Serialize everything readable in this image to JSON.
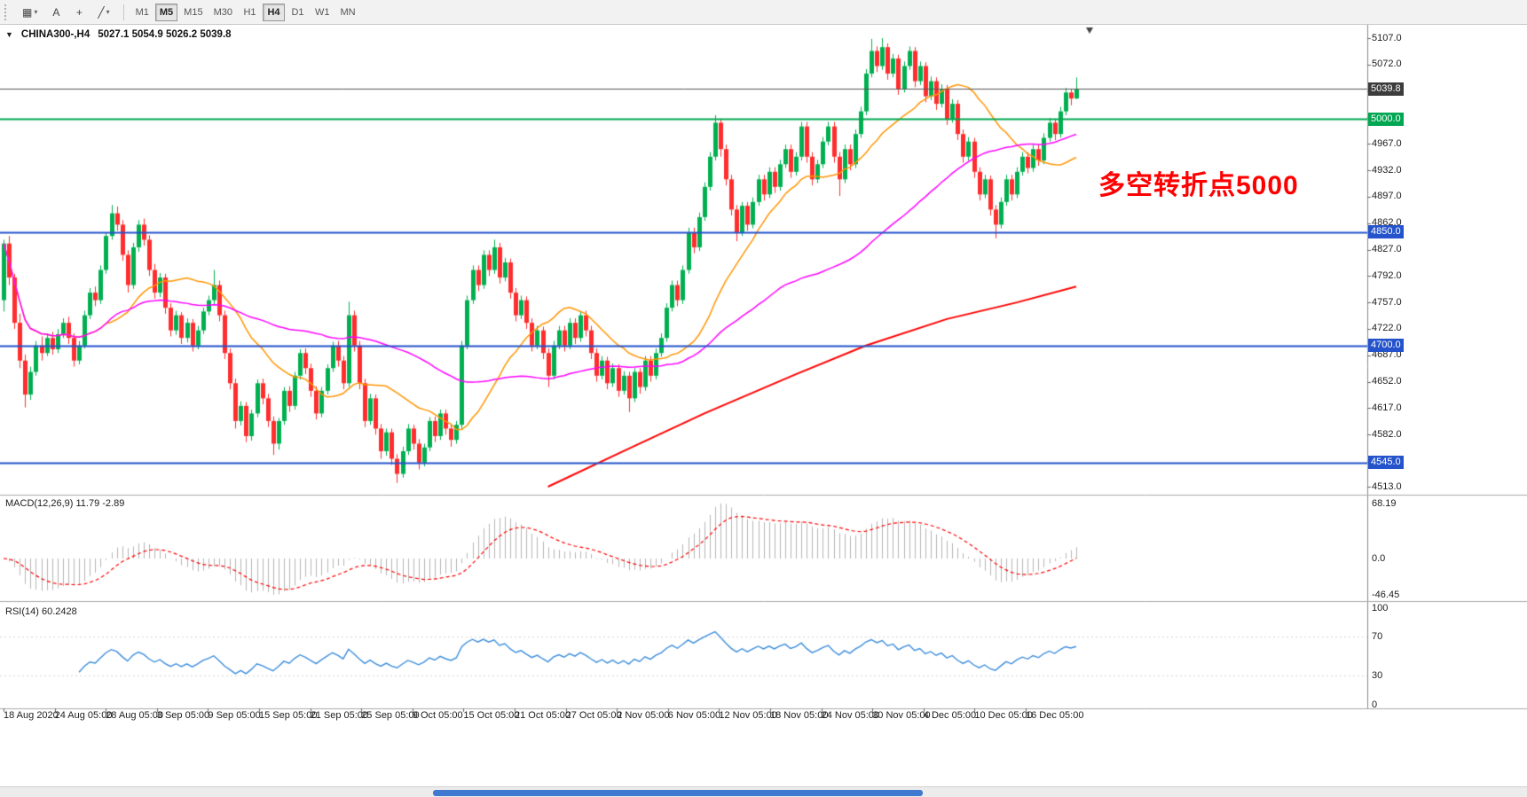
{
  "toolbar": {
    "tools": [
      {
        "name": "chart-type",
        "glyph": "▦",
        "caret": true
      },
      {
        "name": "text-label-tool",
        "glyph": "A",
        "caret": false
      },
      {
        "name": "crosshair-tool",
        "glyph": "+",
        "caret": false
      },
      {
        "name": "drawing-tools",
        "glyph": "╱",
        "caret": true
      }
    ],
    "timeframes": [
      {
        "label": "M1",
        "active": false
      },
      {
        "label": "M5",
        "active": true
      },
      {
        "label": "M15",
        "active": false
      },
      {
        "label": "M30",
        "active": false
      },
      {
        "label": "H1",
        "active": false
      },
      {
        "label": "H4",
        "active": true
      },
      {
        "label": "D1",
        "active": false
      },
      {
        "label": "W1",
        "active": false
      },
      {
        "label": "MN",
        "active": false
      }
    ]
  },
  "chart": {
    "symbol_period": "CHINA300-,H4",
    "ohlc_text": "5027.1 5054.9 5026.2 5039.8",
    "current_price": 5039.8,
    "current_price_color": "#3c3c3c",
    "annotation": {
      "text": "多空转折点5000",
      "color": "#ff0000"
    },
    "hlines": [
      {
        "price": 5000.0,
        "color": "#00a651"
      },
      {
        "price": 4850.0,
        "color": "#2453cc"
      },
      {
        "price": 4700.0,
        "color": "#2453cc"
      },
      {
        "price": 4545.0,
        "color": "#2453cc"
      }
    ],
    "price_ticks": [
      5107.0,
      5072.0,
      5037.0,
      5002.0,
      4967.0,
      4932.0,
      4897.0,
      4862.0,
      4827.0,
      4792.0,
      4757.0,
      4722.0,
      4687.0,
      4652.0,
      4617.0,
      4582.0,
      4547.0,
      4513.0
    ]
  },
  "macd": {
    "label": "MACD(12,26,9) 11.79 -2.89",
    "axis_ticks": [
      68.19,
      0.0,
      -46.45
    ]
  },
  "rsi": {
    "label": "RSI(14) 60.2428",
    "axis_ticks": [
      100,
      70,
      30,
      0
    ]
  },
  "time_axis": [
    "18 Aug 2020",
    "24 Aug 05:00",
    "28 Aug 05:00",
    "3 Sep 05:00",
    "9 Sep 05:00",
    "15 Sep 05:00",
    "21 Sep 05:00",
    "25 Sep 05:00",
    "9 Oct 05:00",
    "15 Oct 05:00",
    "21 Oct 05:00",
    "27 Oct 05:00",
    "2 Nov 05:00",
    "6 Nov 05:00",
    "12 Nov 05:00",
    "18 Nov 05:00",
    "24 Nov 05:00",
    "30 Nov 05:00",
    "4 Dec 05:00",
    "10 Dec 05:00",
    "16 Dec 05:00"
  ],
  "scrollbar": {
    "thumb_color": "#3f7ad0"
  },
  "chart_data": {
    "type": "candlestick",
    "title": "CHINA300- H4",
    "ylim": [
      4513,
      5107
    ],
    "up_color": "#00b050",
    "down_color": "#ff2d2d",
    "ohlc": [
      [
        4760,
        4840,
        4745,
        4835
      ],
      [
        4835,
        4845,
        4780,
        4790
      ],
      [
        4790,
        4795,
        4722,
        4730
      ],
      [
        4730,
        4742,
        4670,
        4680
      ],
      [
        4680,
        4688,
        4618,
        4635
      ],
      [
        4635,
        4672,
        4628,
        4665
      ],
      [
        4665,
        4706,
        4660,
        4700
      ],
      [
        4700,
        4712,
        4680,
        4690
      ],
      [
        4690,
        4716,
        4686,
        4710
      ],
      [
        4710,
        4718,
        4688,
        4695
      ],
      [
        4695,
        4722,
        4690,
        4715
      ],
      [
        4715,
        4736,
        4710,
        4730
      ],
      [
        4730,
        4738,
        4702,
        4710
      ],
      [
        4710,
        4716,
        4672,
        4680
      ],
      [
        4680,
        4706,
        4675,
        4700
      ],
      [
        4700,
        4746,
        4696,
        4740
      ],
      [
        4740,
        4776,
        4735,
        4770
      ],
      [
        4770,
        4778,
        4752,
        4760
      ],
      [
        4760,
        4806,
        4755,
        4800
      ],
      [
        4800,
        4850,
        4795,
        4845
      ],
      [
        4845,
        4886,
        4840,
        4875
      ],
      [
        4875,
        4884,
        4852,
        4860
      ],
      [
        4860,
        4866,
        4812,
        4820
      ],
      [
        4820,
        4826,
        4770,
        4780
      ],
      [
        4780,
        4836,
        4775,
        4830
      ],
      [
        4830,
        4866,
        4824,
        4860
      ],
      [
        4860,
        4868,
        4832,
        4840
      ],
      [
        4840,
        4846,
        4792,
        4800
      ],
      [
        4800,
        4808,
        4762,
        4770
      ],
      [
        4770,
        4796,
        4764,
        4790
      ],
      [
        4790,
        4795,
        4742,
        4750
      ],
      [
        4750,
        4756,
        4712,
        4720
      ],
      [
        4720,
        4746,
        4714,
        4740
      ],
      [
        4740,
        4744,
        4702,
        4710
      ],
      [
        4710,
        4736,
        4704,
        4730
      ],
      [
        4730,
        4735,
        4692,
        4700
      ],
      [
        4700,
        4726,
        4695,
        4720
      ],
      [
        4720,
        4750,
        4715,
        4745
      ],
      [
        4745,
        4766,
        4740,
        4760
      ],
      [
        4760,
        4800,
        4754,
        4780
      ],
      [
        4780,
        4786,
        4732,
        4740
      ],
      [
        4740,
        4746,
        4682,
        4690
      ],
      [
        4690,
        4696,
        4642,
        4650
      ],
      [
        4650,
        4656,
        4590,
        4600
      ],
      [
        4600,
        4626,
        4594,
        4620
      ],
      [
        4620,
        4625,
        4572,
        4580
      ],
      [
        4580,
        4615,
        4574,
        4610
      ],
      [
        4610,
        4655,
        4605,
        4650
      ],
      [
        4650,
        4656,
        4622,
        4630
      ],
      [
        4630,
        4636,
        4592,
        4600
      ],
      [
        4600,
        4606,
        4555,
        4570
      ],
      [
        4570,
        4604,
        4562,
        4600
      ],
      [
        4600,
        4645,
        4595,
        4640
      ],
      [
        4640,
        4646,
        4612,
        4620
      ],
      [
        4620,
        4665,
        4615,
        4660
      ],
      [
        4660,
        4695,
        4655,
        4690
      ],
      [
        4690,
        4696,
        4662,
        4670
      ],
      [
        4670,
        4676,
        4632,
        4640
      ],
      [
        4640,
        4646,
        4602,
        4610
      ],
      [
        4610,
        4645,
        4605,
        4640
      ],
      [
        4640,
        4675,
        4635,
        4670
      ],
      [
        4670,
        4705,
        4665,
        4700
      ],
      [
        4700,
        4706,
        4672,
        4680
      ],
      [
        4680,
        4686,
        4642,
        4650
      ],
      [
        4650,
        4758,
        4645,
        4740
      ],
      [
        4740,
        4746,
        4692,
        4700
      ],
      [
        4700,
        4706,
        4642,
        4650
      ],
      [
        4650,
        4656,
        4592,
        4600
      ],
      [
        4600,
        4636,
        4595,
        4630
      ],
      [
        4630,
        4635,
        4582,
        4590
      ],
      [
        4590,
        4596,
        4550,
        4560
      ],
      [
        4560,
        4590,
        4554,
        4585
      ],
      [
        4585,
        4590,
        4542,
        4550
      ],
      [
        4550,
        4556,
        4518,
        4530
      ],
      [
        4530,
        4566,
        4525,
        4560
      ],
      [
        4560,
        4596,
        4555,
        4590
      ],
      [
        4590,
        4595,
        4562,
        4570
      ],
      [
        4570,
        4576,
        4536,
        4545
      ],
      [
        4545,
        4570,
        4540,
        4565
      ],
      [
        4565,
        4605,
        4560,
        4600
      ],
      [
        4600,
        4606,
        4572,
        4580
      ],
      [
        4580,
        4615,
        4575,
        4610
      ],
      [
        4610,
        4615,
        4582,
        4590
      ],
      [
        4590,
        4596,
        4566,
        4575
      ],
      [
        4575,
        4600,
        4570,
        4595
      ],
      [
        4595,
        4706,
        4590,
        4700
      ],
      [
        4700,
        4766,
        4695,
        4760
      ],
      [
        4760,
        4806,
        4755,
        4800
      ],
      [
        4800,
        4806,
        4772,
        4780
      ],
      [
        4780,
        4826,
        4775,
        4820
      ],
      [
        4820,
        4826,
        4792,
        4800
      ],
      [
        4800,
        4840,
        4795,
        4830
      ],
      [
        4830,
        4836,
        4782,
        4790
      ],
      [
        4790,
        4816,
        4785,
        4810
      ],
      [
        4810,
        4815,
        4762,
        4770
      ],
      [
        4770,
        4776,
        4732,
        4740
      ],
      [
        4740,
        4766,
        4735,
        4760
      ],
      [
        4760,
        4765,
        4722,
        4730
      ],
      [
        4730,
        4736,
        4692,
        4700
      ],
      [
        4700,
        4726,
        4695,
        4720
      ],
      [
        4720,
        4725,
        4682,
        4690
      ],
      [
        4690,
        4696,
        4645,
        4660
      ],
      [
        4660,
        4706,
        4655,
        4700
      ],
      [
        4700,
        4726,
        4695,
        4720
      ],
      [
        4720,
        4726,
        4692,
        4700
      ],
      [
        4700,
        4736,
        4695,
        4730
      ],
      [
        4730,
        4736,
        4702,
        4710
      ],
      [
        4710,
        4746,
        4705,
        4740
      ],
      [
        4740,
        4746,
        4712,
        4720
      ],
      [
        4720,
        4726,
        4682,
        4690
      ],
      [
        4690,
        4696,
        4652,
        4660
      ],
      [
        4660,
        4686,
        4655,
        4680
      ],
      [
        4680,
        4685,
        4642,
        4650
      ],
      [
        4650,
        4676,
        4645,
        4670
      ],
      [
        4670,
        4675,
        4632,
        4640
      ],
      [
        4640,
        4666,
        4635,
        4660
      ],
      [
        4660,
        4665,
        4612,
        4630
      ],
      [
        4630,
        4670,
        4625,
        4665
      ],
      [
        4665,
        4670,
        4636,
        4645
      ],
      [
        4645,
        4686,
        4640,
        4680
      ],
      [
        4680,
        4686,
        4652,
        4660
      ],
      [
        4660,
        4696,
        4655,
        4690
      ],
      [
        4690,
        4716,
        4685,
        4710
      ],
      [
        4710,
        4756,
        4705,
        4750
      ],
      [
        4750,
        4786,
        4745,
        4780
      ],
      [
        4780,
        4786,
        4752,
        4760
      ],
      [
        4760,
        4806,
        4755,
        4800
      ],
      [
        4800,
        4856,
        4795,
        4850
      ],
      [
        4850,
        4856,
        4822,
        4830
      ],
      [
        4830,
        4876,
        4825,
        4870
      ],
      [
        4870,
        4916,
        4865,
        4910
      ],
      [
        4910,
        4956,
        4905,
        4950
      ],
      [
        4950,
        5005,
        4945,
        4995
      ],
      [
        4995,
        5000,
        4950,
        4960
      ],
      [
        4960,
        4966,
        4912,
        4920
      ],
      [
        4920,
        4926,
        4872,
        4880
      ],
      [
        4880,
        4886,
        4838,
        4850
      ],
      [
        4850,
        4890,
        4845,
        4885
      ],
      [
        4885,
        4890,
        4852,
        4860
      ],
      [
        4860,
        4896,
        4855,
        4890
      ],
      [
        4890,
        4926,
        4885,
        4920
      ],
      [
        4920,
        4926,
        4892,
        4900
      ],
      [
        4900,
        4936,
        4895,
        4930
      ],
      [
        4930,
        4936,
        4902,
        4910
      ],
      [
        4910,
        4946,
        4905,
        4940
      ],
      [
        4940,
        4966,
        4935,
        4960
      ],
      [
        4960,
        4966,
        4922,
        4930
      ],
      [
        4930,
        4956,
        4925,
        4950
      ],
      [
        4950,
        4996,
        4945,
        4990
      ],
      [
        4990,
        4996,
        4942,
        4950
      ],
      [
        4950,
        4956,
        4912,
        4920
      ],
      [
        4920,
        4946,
        4915,
        4940
      ],
      [
        4940,
        4976,
        4935,
        4970
      ],
      [
        4970,
        4996,
        4965,
        4990
      ],
      [
        4990,
        4996,
        4942,
        4950
      ],
      [
        4950,
        4956,
        4898,
        4920
      ],
      [
        4920,
        4966,
        4915,
        4960
      ],
      [
        4960,
        4966,
        4932,
        4940
      ],
      [
        4940,
        4986,
        4935,
        4980
      ],
      [
        4980,
        5016,
        4975,
        5010
      ],
      [
        5010,
        5066,
        5005,
        5060
      ],
      [
        5060,
        5106,
        5055,
        5090
      ],
      [
        5090,
        5096,
        5062,
        5070
      ],
      [
        5070,
        5107,
        5065,
        5095
      ],
      [
        5095,
        5100,
        5052,
        5060
      ],
      [
        5060,
        5086,
        5055,
        5080
      ],
      [
        5080,
        5085,
        5032,
        5040
      ],
      [
        5040,
        5076,
        5035,
        5070
      ],
      [
        5070,
        5096,
        5065,
        5090
      ],
      [
        5090,
        5095,
        5042,
        5050
      ],
      [
        5050,
        5076,
        5045,
        5070
      ],
      [
        5070,
        5075,
        5022,
        5030
      ],
      [
        5030,
        5056,
        5025,
        5050
      ],
      [
        5050,
        5055,
        5012,
        5020
      ],
      [
        5020,
        5046,
        5015,
        5040
      ],
      [
        5040,
        5045,
        4992,
        5000
      ],
      [
        5000,
        5026,
        4995,
        5020
      ],
      [
        5020,
        5025,
        4972,
        4980
      ],
      [
        4980,
        4986,
        4942,
        4950
      ],
      [
        4950,
        4976,
        4945,
        4970
      ],
      [
        4970,
        4975,
        4922,
        4930
      ],
      [
        4930,
        4936,
        4892,
        4900
      ],
      [
        4900,
        4926,
        4895,
        4920
      ],
      [
        4920,
        4925,
        4872,
        4880
      ],
      [
        4880,
        4886,
        4842,
        4860
      ],
      [
        4860,
        4896,
        4855,
        4890
      ],
      [
        4890,
        4926,
        4885,
        4920
      ],
      [
        4920,
        4926,
        4892,
        4900
      ],
      [
        4900,
        4936,
        4895,
        4930
      ],
      [
        4930,
        4956,
        4925,
        4950
      ],
      [
        4950,
        4956,
        4928,
        4935
      ],
      [
        4935,
        4966,
        4930,
        4960
      ],
      [
        4960,
        4966,
        4938,
        4945
      ],
      [
        4945,
        4981,
        4940,
        4975
      ],
      [
        4975,
        5001,
        4970,
        4995
      ],
      [
        4995,
        5000,
        4972,
        4980
      ],
      [
        4980,
        5016,
        4975,
        5010
      ],
      [
        5010,
        5041,
        5005,
        5035
      ],
      [
        5035,
        5040,
        5018,
        5027
      ],
      [
        5027.1,
        5054.9,
        5026.2,
        5039.8
      ]
    ],
    "overlays": [
      {
        "name": "ma-fast",
        "type": "sma",
        "period": 20,
        "color": "#ff9500"
      },
      {
        "name": "ma-mid",
        "type": "sma",
        "period": 60,
        "color": "#ff00ff"
      },
      {
        "name": "ma-long",
        "type": "polyline",
        "color": "#ff0000",
        "points": [
          [
            101,
            4513
          ],
          [
            115,
            4560
          ],
          [
            130,
            4610
          ],
          [
            147,
            4662
          ],
          [
            160,
            4700
          ],
          [
            175,
            4735
          ],
          [
            188,
            4757
          ],
          [
            199,
            4778
          ]
        ]
      }
    ],
    "indicators": [
      {
        "name": "MACD",
        "params": [
          12,
          26,
          9
        ],
        "display_values": [
          11.79,
          -2.89
        ],
        "range": [
          -46.45,
          68.19
        ],
        "histogram_color": "#b4b4b4",
        "signal_color": "#ff0000"
      },
      {
        "name": "RSI",
        "params": [
          14
        ],
        "display_value": 60.2428,
        "range": [
          0,
          100
        ],
        "levels": [
          70,
          30
        ],
        "line_color": "#3c8ddc"
      }
    ]
  }
}
